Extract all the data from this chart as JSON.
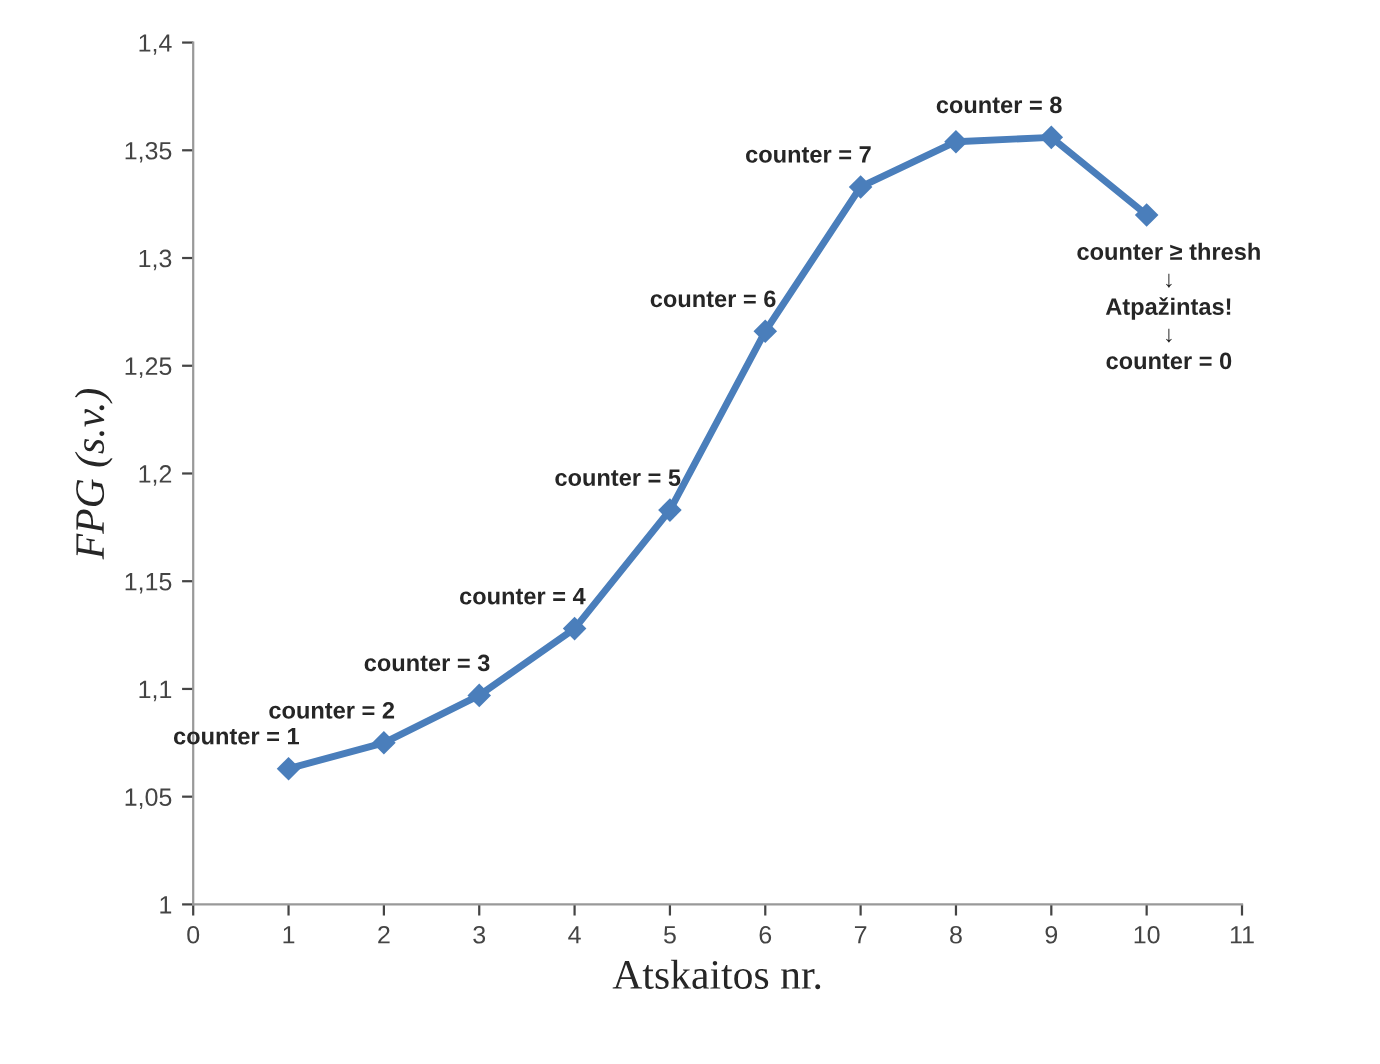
{
  "chart_data": {
    "type": "line",
    "xlabel": "Atskaitos nr.",
    "ylabel": "FPG (s.v.)",
    "x": [
      1,
      2,
      3,
      4,
      5,
      6,
      7,
      8,
      9,
      10
    ],
    "series": [
      {
        "color": "#4a7ebb",
        "values": [
          1.063,
          1.075,
          1.097,
          1.128,
          1.183,
          1.266,
          1.333,
          1.354,
          1.356,
          1.32
        ]
      }
    ],
    "xlim": [
      0,
      11
    ],
    "xticks": [
      0,
      1,
      2,
      3,
      4,
      5,
      6,
      7,
      8,
      9,
      10,
      11
    ],
    "ylim": [
      1,
      1.4
    ],
    "yticks": [
      1,
      {
        "value": 1.05,
        "label": "1,05"
      },
      {
        "value": 1.1,
        "label": "1,1"
      },
      {
        "value": 1.15,
        "label": "1,15"
      },
      {
        "value": 1.2,
        "label": "1,2"
      },
      {
        "value": 1.25,
        "label": "1,25"
      },
      {
        "value": 1.3,
        "label": "1,3"
      },
      {
        "value": 1.35,
        "label": "1,35"
      },
      {
        "value": 1.4,
        "label": "1,4"
      }
    ],
    "marker": "diamond",
    "line_style": "solid",
    "grid": false,
    "legend": false,
    "annotations": [
      {
        "text": "counter = 1",
        "x": 1,
        "y": 1.063
      },
      {
        "text": "counter = 2",
        "x": 2,
        "y": 1.075
      },
      {
        "text": "counter = 3",
        "x": 3,
        "y": 1.097
      },
      {
        "text": "counter = 4",
        "x": 4,
        "y": 1.128
      },
      {
        "text": "counter = 5",
        "x": 5,
        "y": 1.183
      },
      {
        "text": "counter = 6",
        "x": 6,
        "y": 1.266
      },
      {
        "text": "counter = 7",
        "x": 7,
        "y": 1.333
      },
      {
        "text": "counter = 8",
        "x": 9,
        "y": 1.356
      },
      {
        "text": "counter ≥ thresh\n↓\nAtpažintas!\n↓\ncounter = 0",
        "x": 10,
        "y": 1.32
      }
    ]
  }
}
